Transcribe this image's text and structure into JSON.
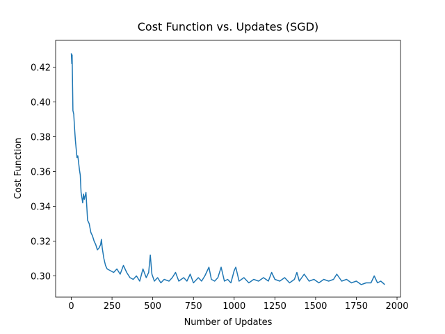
{
  "chart_data": {
    "type": "line",
    "title": "Cost Function vs. Updates (SGD)",
    "x_label": "Number of Updates",
    "y_label": "Cost Function",
    "grid": false,
    "xlim": [
      -96.25,
      2021.25
    ],
    "ylim": [
      0.2878,
      0.4354
    ],
    "xticks": [
      0,
      250,
      500,
      750,
      1000,
      1250,
      1500,
      1750,
      2000
    ],
    "yticks": [
      {
        "value": 0.3,
        "label": "0.30"
      },
      0.32,
      0.34,
      0.36,
      0.38,
      {
        "value": 0.4,
        "label": "0.40"
      },
      0.42
    ],
    "x": [
      0,
      3,
      5,
      8,
      10,
      15,
      20,
      25,
      30,
      35,
      40,
      45,
      50,
      55,
      60,
      65,
      70,
      75,
      80,
      85,
      90,
      95,
      100,
      110,
      120,
      130,
      140,
      150,
      160,
      170,
      180,
      185,
      190,
      200,
      210,
      220,
      240,
      260,
      280,
      300,
      320,
      340,
      360,
      380,
      400,
      420,
      440,
      460,
      475,
      485,
      495,
      510,
      530,
      550,
      570,
      600,
      620,
      640,
      660,
      690,
      710,
      730,
      750,
      780,
      800,
      820,
      845,
      860,
      880,
      900,
      920,
      940,
      960,
      980,
      1000,
      1010,
      1030,
      1060,
      1090,
      1120,
      1150,
      1180,
      1210,
      1230,
      1250,
      1280,
      1310,
      1340,
      1370,
      1385,
      1400,
      1430,
      1460,
      1490,
      1520,
      1550,
      1580,
      1610,
      1630,
      1660,
      1690,
      1720,
      1750,
      1780,
      1810,
      1840,
      1860,
      1880,
      1900,
      1925
    ],
    "series": [
      {
        "name": "Cost Function",
        "color": "#1f77b4",
        "values": [
          0.428,
          0.422,
          0.427,
          0.408,
          0.395,
          0.393,
          0.385,
          0.378,
          0.373,
          0.368,
          0.369,
          0.365,
          0.361,
          0.358,
          0.348,
          0.345,
          0.342,
          0.347,
          0.344,
          0.346,
          0.348,
          0.34,
          0.332,
          0.33,
          0.325,
          0.323,
          0.32,
          0.318,
          0.315,
          0.316,
          0.318,
          0.321,
          0.316,
          0.31,
          0.306,
          0.304,
          0.303,
          0.302,
          0.304,
          0.301,
          0.306,
          0.302,
          0.299,
          0.298,
          0.3,
          0.297,
          0.304,
          0.299,
          0.302,
          0.312,
          0.301,
          0.297,
          0.299,
          0.296,
          0.298,
          0.297,
          0.299,
          0.302,
          0.297,
          0.299,
          0.297,
          0.301,
          0.296,
          0.299,
          0.297,
          0.3,
          0.305,
          0.298,
          0.297,
          0.299,
          0.305,
          0.297,
          0.298,
          0.296,
          0.303,
          0.305,
          0.297,
          0.299,
          0.296,
          0.298,
          0.297,
          0.299,
          0.297,
          0.302,
          0.298,
          0.297,
          0.299,
          0.296,
          0.298,
          0.302,
          0.297,
          0.301,
          0.297,
          0.298,
          0.296,
          0.298,
          0.297,
          0.298,
          0.301,
          0.297,
          0.298,
          0.296,
          0.297,
          0.295,
          0.296,
          0.296,
          0.3,
          0.296,
          0.297,
          0.295
        ]
      }
    ]
  }
}
